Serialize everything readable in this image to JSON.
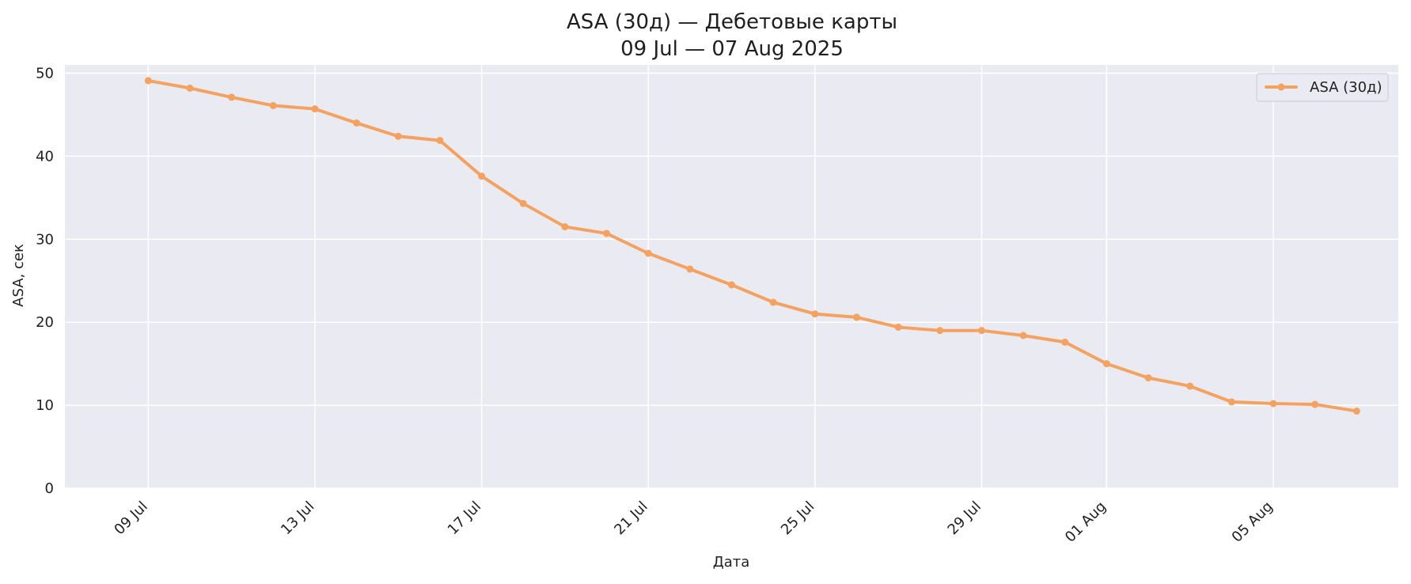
{
  "chart_data": {
    "type": "line",
    "title_line1": "ASA (30д) — Дебетовые карты",
    "title_line2": "09 Jul — 07 Aug 2025",
    "xlabel": "Дата",
    "ylabel": "ASA, сек",
    "x": [
      "2025-07-09",
      "2025-07-10",
      "2025-07-11",
      "2025-07-12",
      "2025-07-13",
      "2025-07-14",
      "2025-07-15",
      "2025-07-16",
      "2025-07-17",
      "2025-07-18",
      "2025-07-19",
      "2025-07-20",
      "2025-07-21",
      "2025-07-22",
      "2025-07-23",
      "2025-07-24",
      "2025-07-25",
      "2025-07-26",
      "2025-07-27",
      "2025-07-28",
      "2025-07-29",
      "2025-07-30",
      "2025-07-31",
      "2025-08-01",
      "2025-08-02",
      "2025-08-03",
      "2025-08-04",
      "2025-08-05",
      "2025-08-06",
      "2025-08-07"
    ],
    "series": [
      {
        "name": "ASA (30д)",
        "color": "#f4a261",
        "values": [
          49.1,
          48.2,
          47.1,
          46.1,
          45.7,
          44.0,
          42.4,
          41.9,
          37.6,
          34.3,
          31.5,
          30.7,
          28.3,
          26.4,
          24.5,
          22.4,
          21.0,
          20.6,
          19.4,
          19.0,
          19.0,
          18.4,
          17.6,
          15.0,
          13.3,
          12.3,
          10.4,
          10.2,
          10.1,
          9.3
        ]
      }
    ],
    "xticks": [
      {
        "x": "2025-07-09",
        "label": "09 Jul"
      },
      {
        "x": "2025-07-13",
        "label": "13 Jul"
      },
      {
        "x": "2025-07-17",
        "label": "17 Jul"
      },
      {
        "x": "2025-07-21",
        "label": "21 Jul"
      },
      {
        "x": "2025-07-25",
        "label": "25 Jul"
      },
      {
        "x": "2025-07-29",
        "label": "29 Jul"
      },
      {
        "x": "2025-08-01",
        "label": "01 Aug"
      },
      {
        "x": "2025-08-05",
        "label": "05 Aug"
      }
    ],
    "yticks": [
      0,
      10,
      20,
      30,
      40,
      50
    ],
    "ylim": [
      0,
      51
    ],
    "xlim": [
      "2025-07-07",
      "2025-08-08"
    ],
    "grid": true,
    "legend_position": "top-right",
    "background_color": "#eaeaf2",
    "grid_color": "#ffffff"
  }
}
